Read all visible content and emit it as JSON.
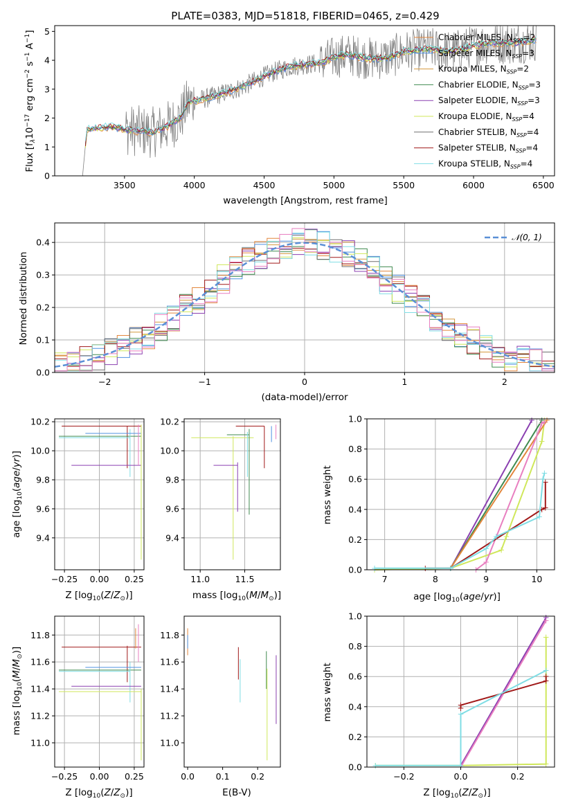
{
  "figure_title": "PLATE=0383, MJD=51818, FIBERID=0465, z=0.429",
  "model_colors": {
    "Chabrier MILES": "#e2863c",
    "Salpeter MILES": "#4f90e0",
    "Kroupa MILES": "#d4983c",
    "Chabrier ELODIE": "#3f8a4f",
    "Salpeter ELODIE": "#8a3fb0",
    "Kroupa ELODIE": "#cfe75a",
    "Chabrier STELIB": "#6e6e6e",
    "Salpeter STELIB": "#a01818",
    "Kroupa STELIB": "#7fdde4",
    "pink": "#e87fc0",
    "data": "#808080",
    "gaussian": "#5a8fd6"
  },
  "chart_data": [
    {
      "id": "spectrum",
      "type": "line",
      "xlabel": "wavelength [Angstrom, rest frame]",
      "ylabel": "Flux [f_λ 10^-17 erg cm^-2 s^-1 A^-1]",
      "xlim": [
        3000,
        6580
      ],
      "ylim": [
        0,
        5.2
      ],
      "xticks": [
        3500,
        4000,
        4500,
        5000,
        5500,
        6000,
        6500
      ],
      "yticks": [
        0,
        1,
        2,
        3,
        4,
        5
      ],
      "grid": false,
      "legend_position": "right",
      "data_start": 3200,
      "continuum": {
        "x": [
          3200,
          3230,
          3300,
          3400,
          3500,
          3600,
          3700,
          3800,
          3900,
          3950,
          4000,
          4100,
          4200,
          4300,
          4400,
          4500,
          4600,
          4700,
          4800,
          4900,
          5000,
          5100,
          5200,
          5300,
          5400,
          5500,
          5600,
          5700,
          5800,
          5900,
          6000,
          6100,
          6200,
          6300,
          6450
        ],
        "y": [
          0,
          1.6,
          1.65,
          1.7,
          1.6,
          1.55,
          1.5,
          1.7,
          2.0,
          2.5,
          2.6,
          2.7,
          2.85,
          3.0,
          3.2,
          3.45,
          3.65,
          3.8,
          3.85,
          3.9,
          4.1,
          4.2,
          4.1,
          4.05,
          4.1,
          4.3,
          4.35,
          4.4,
          4.3,
          4.35,
          4.5,
          4.6,
          4.6,
          4.6,
          4.7
        ]
      },
      "series": [
        {
          "label": "Chabrier MILES, N_SSP=2",
          "text": "Chabrier MILES, N",
          "sub": "SSP",
          "tail": "=2",
          "color": "#e2863c"
        },
        {
          "label": "Salpeter MILES, N_SSP=3",
          "text": "Salpeter MILES, N",
          "sub": "SSP",
          "tail": "=3",
          "color": "#4f90e0"
        },
        {
          "label": "Kroupa MILES, N_SSP=2",
          "text": "Kroupa MILES, N",
          "sub": "SSP",
          "tail": "=2",
          "color": "#d4983c"
        },
        {
          "label": "Chabrier ELODIE, N_SSP=3",
          "text": "Chabrier ELODIE, N",
          "sub": "SSP",
          "tail": "=3",
          "color": "#3f8a4f"
        },
        {
          "label": "Salpeter ELODIE, N_SSP=3",
          "text": "Salpeter ELODIE, N",
          "sub": "SSP",
          "tail": "=3",
          "color": "#8a3fb0"
        },
        {
          "label": "Kroupa ELODIE, N_SSP=4",
          "text": "Kroupa ELODIE, N",
          "sub": "SSP",
          "tail": "=4",
          "color": "#cfe75a"
        },
        {
          "label": "Chabrier STELIB, N_SSP=4",
          "text": "Chabrier STELIB, N",
          "sub": "SSP",
          "tail": "=4",
          "color": "#6e6e6e"
        },
        {
          "label": "Salpeter STELIB, N_SSP=4",
          "text": "Salpeter STELIB, N",
          "sub": "SSP",
          "tail": "=4",
          "color": "#a01818"
        },
        {
          "label": "Kroupa STELIB, N_SSP=4",
          "text": "Kroupa STELIB, N",
          "sub": "SSP",
          "tail": "=4",
          "color": "#7fdde4"
        }
      ]
    },
    {
      "id": "residual_hist",
      "type": "line",
      "xlabel": "(data-model)/error",
      "ylabel": "Normed distribution",
      "xlim": [
        -2.5,
        2.5
      ],
      "ylim": [
        0,
        0.46
      ],
      "xticks": [
        -2,
        -1,
        0,
        1,
        2
      ],
      "xticklabels": [
        "−2",
        "−1",
        "0",
        "1",
        "2"
      ],
      "yticks": [
        0,
        0.1,
        0.2,
        0.3,
        0.4
      ],
      "yticklabels": [
        "0.0",
        "0.1",
        "0.2",
        "0.3",
        "0.4"
      ],
      "grid": true,
      "legend_position": "top-right",
      "legend_label": "𝒩(0, 1)",
      "gaussian": {
        "mean": 0,
        "sigma": 1
      },
      "bin_width": 0.125
    },
    {
      "id": "age_vs_Z",
      "type": "scatter",
      "xlabel": "Z [log10(Z/Z⊙)]",
      "ylabel": "age  [log10(age/yr)]",
      "xlim": [
        -0.32,
        0.32
      ],
      "ylim": [
        9.18,
        10.22
      ],
      "xticks": [
        -0.25,
        0,
        0.25
      ],
      "xticklabels": [
        "−0.25",
        "0.00",
        "0.25"
      ],
      "yticks": [
        9.4,
        9.6,
        9.8,
        10.0,
        10.2
      ],
      "yticklabels": [
        "9.4",
        "9.6",
        "9.8",
        "10.0",
        "10.2"
      ],
      "grid": true
    },
    {
      "id": "age_vs_mass",
      "type": "scatter",
      "xlabel": "mass [log10(M/M⊙)]",
      "xlim": [
        10.82,
        11.9
      ],
      "ylim": [
        9.18,
        10.22
      ],
      "xticks": [
        11.0,
        11.5
      ],
      "xticklabels": [
        "11.0",
        "11.5"
      ],
      "yticks": [
        9.4,
        9.6,
        9.8,
        10.0,
        10.2
      ],
      "yticklabels": [
        "9.4",
        "9.6",
        "9.8",
        "10.0",
        "10.2"
      ],
      "grid": true
    },
    {
      "id": "weight_vs_age",
      "type": "line",
      "xlabel": "age  [log10(age/yr)]",
      "ylabel": "mass weight",
      "xlim": [
        6.65,
        10.35
      ],
      "ylim": [
        0,
        1
      ],
      "xticks": [
        7,
        8,
        9,
        10
      ],
      "yticks": [
        0,
        0.2,
        0.4,
        0.6,
        0.8,
        1.0
      ],
      "yticklabels": [
        "0.0",
        "0.2",
        "0.4",
        "0.6",
        "0.8",
        "1.0"
      ],
      "grid": true
    },
    {
      "id": "mass_vs_Z",
      "type": "scatter",
      "xlabel": "Z [log10(Z/Z⊙)]",
      "ylabel": "mass [log10(M/M⊙)]",
      "xlim": [
        -0.32,
        0.32
      ],
      "ylim": [
        10.82,
        11.94
      ],
      "xticks": [
        -0.25,
        0,
        0.25
      ],
      "xticklabels": [
        "−0.25",
        "0.00",
        "0.25"
      ],
      "yticks": [
        11.0,
        11.2,
        11.4,
        11.6,
        11.8
      ],
      "yticklabels": [
        "11.0",
        "11.2",
        "11.4",
        "11.6",
        "11.8"
      ],
      "grid": true
    },
    {
      "id": "mass_vs_ebv",
      "type": "scatter",
      "xlabel": "E(B-V)",
      "xlim": [
        -0.01,
        0.265
      ],
      "ylim": [
        10.82,
        11.94
      ],
      "xticks": [
        0,
        0.1,
        0.2
      ],
      "xticklabels": [
        "0.0",
        "0.1",
        "0.2"
      ],
      "yticks": [
        11.0,
        11.2,
        11.4,
        11.6,
        11.8
      ],
      "yticklabels": [
        "11.0",
        "11.2",
        "11.4",
        "11.6",
        "11.8"
      ],
      "grid": false
    },
    {
      "id": "weight_vs_Z",
      "type": "line",
      "xlabel": "Z [log10(Z/Z⊙)]",
      "ylabel": "mass weight",
      "xlim": [
        -0.33,
        0.33
      ],
      "ylim": [
        0,
        1
      ],
      "xticks": [
        -0.2,
        0,
        0.2
      ],
      "xticklabels": [
        "−0.2",
        "0.0",
        "0.2"
      ],
      "yticks": [
        0,
        0.2,
        0.4,
        0.6,
        0.8,
        1.0
      ],
      "yticklabels": [
        "0.0",
        "0.2",
        "0.4",
        "0.6",
        "0.8",
        "1.0"
      ],
      "grid": true
    }
  ]
}
